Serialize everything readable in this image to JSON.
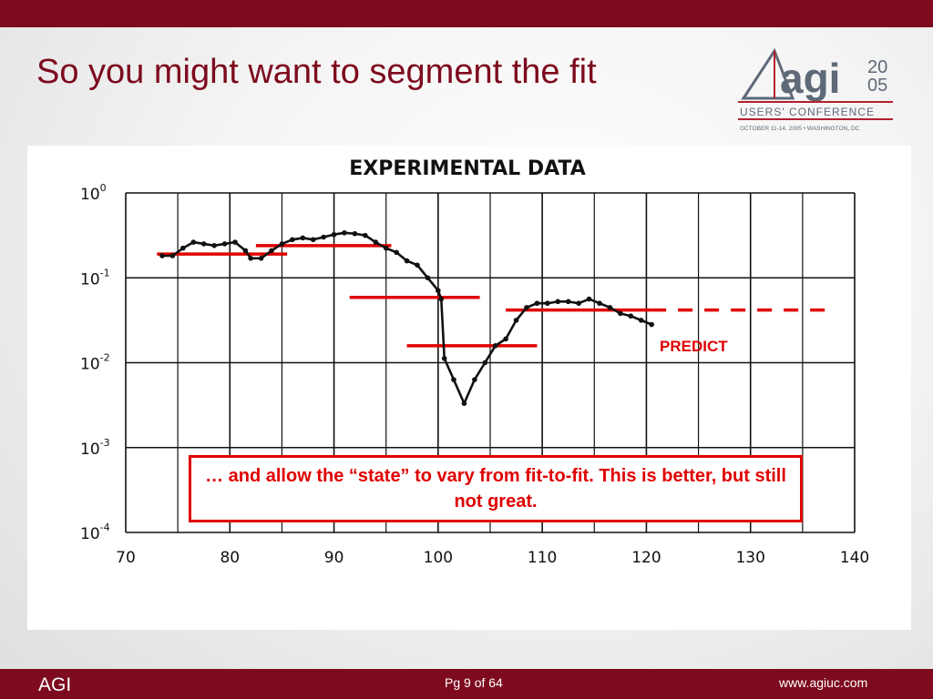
{
  "slide": {
    "title": "So you might want to segment the fit",
    "footer_left": "AGI",
    "footer_center": "Pg 9 of 64",
    "footer_right": "www.agiuc.com",
    "colors": {
      "brand": "#7d0a1e",
      "accent": "#e00000"
    }
  },
  "logo": {
    "word": "agi",
    "year_top": "20",
    "year_bottom": "05",
    "line1": "USERS' CONFERENCE",
    "line2": "OCTOBER 11-14, 2005 • WASHINGTON, DC"
  },
  "callout": {
    "text": "… and allow the “state” to vary from fit-to-fit. This is better, but still not great."
  },
  "chart_data": {
    "type": "line",
    "title": "EXPERIMENTAL DATA",
    "xlabel": "",
    "ylabel": "",
    "x_scale": "linear",
    "y_scale": "log",
    "xlim": [
      70,
      140
    ],
    "ylim_exp": [
      -4,
      0
    ],
    "grid": true,
    "x_ticks": [
      "70",
      "80",
      "90",
      "100",
      "110",
      "120",
      "130",
      "140"
    ],
    "y_ticks": [
      {
        "base": "10",
        "exp": "0"
      },
      {
        "base": "10",
        "exp": "-1"
      },
      {
        "base": "10",
        "exp": "-2"
      },
      {
        "base": "10",
        "exp": "-3"
      },
      {
        "base": "10",
        "exp": "-4"
      }
    ],
    "series": [
      {
        "points": [
          [
            73.5,
            -0.74
          ],
          [
            74.5,
            -0.74
          ],
          [
            75.5,
            -0.65
          ],
          [
            76.5,
            -0.58
          ],
          [
            77.5,
            -0.6
          ],
          [
            78.5,
            -0.62
          ],
          [
            79.5,
            -0.6
          ],
          [
            80.5,
            -0.58
          ],
          [
            81.5,
            -0.68
          ],
          [
            82,
            -0.77
          ],
          [
            83,
            -0.77
          ],
          [
            84,
            -0.68
          ],
          [
            85,
            -0.6
          ],
          [
            86,
            -0.55
          ],
          [
            87,
            -0.53
          ],
          [
            88,
            -0.55
          ],
          [
            89,
            -0.52
          ],
          [
            90,
            -0.49
          ],
          [
            91,
            -0.47
          ],
          [
            92,
            -0.48
          ],
          [
            93,
            -0.5
          ],
          [
            94,
            -0.58
          ],
          [
            95,
            -0.65
          ],
          [
            96,
            -0.7
          ],
          [
            97,
            -0.8
          ],
          [
            98,
            -0.85
          ],
          [
            99,
            -1.0
          ],
          [
            100,
            -1.15
          ],
          [
            100.3,
            -1.25
          ],
          [
            100.6,
            -1.95
          ],
          [
            101.5,
            -2.2
          ],
          [
            102.5,
            -2.48
          ],
          [
            103.5,
            -2.2
          ],
          [
            104.5,
            -2.0
          ],
          [
            105.5,
            -1.8
          ],
          [
            106.5,
            -1.72
          ],
          [
            107.5,
            -1.5
          ],
          [
            108.5,
            -1.35
          ],
          [
            109.5,
            -1.3
          ],
          [
            110.5,
            -1.3
          ],
          [
            111.5,
            -1.28
          ],
          [
            112.5,
            -1.28
          ],
          [
            113.5,
            -1.3
          ],
          [
            114.5,
            -1.25
          ],
          [
            115.5,
            -1.3
          ],
          [
            116.5,
            -1.35
          ],
          [
            117.5,
            -1.42
          ],
          [
            118.5,
            -1.45
          ],
          [
            119.5,
            -1.5
          ],
          [
            120.5,
            -1.55
          ]
        ]
      }
    ],
    "fit_segments": [
      {
        "x1": 73,
        "x2": 85.5,
        "y_exp": -0.72
      },
      {
        "x1": 82.5,
        "x2": 95.5,
        "y_exp": -0.62
      },
      {
        "x1": 91.5,
        "x2": 104,
        "y_exp": -1.23
      },
      {
        "x1": 97,
        "x2": 109.5,
        "y_exp": -1.8
      },
      {
        "x1": 106.5,
        "x2": 120.5,
        "y_exp": -1.38
      }
    ],
    "prediction": {
      "x1": 120.5,
      "x2": 137.5,
      "y_exp": -1.38,
      "style": "dashed"
    },
    "annotation": "PREDICT"
  }
}
